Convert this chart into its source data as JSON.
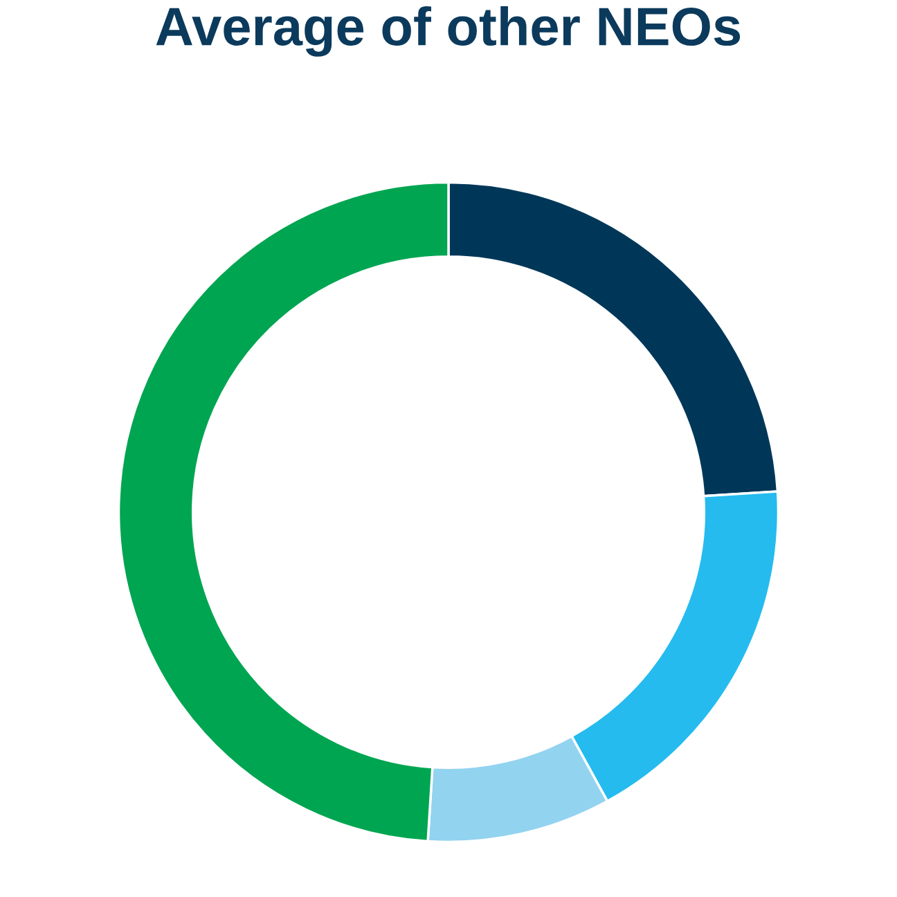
{
  "chart_data": {
    "type": "donut",
    "title": "Average of other NEOs",
    "categories": [
      null,
      null,
      null,
      null
    ],
    "values": [
      24,
      18,
      9,
      49
    ],
    "colors": [
      "#003758",
      "#25bbee",
      "#92d3f0",
      "#00a551"
    ]
  }
}
